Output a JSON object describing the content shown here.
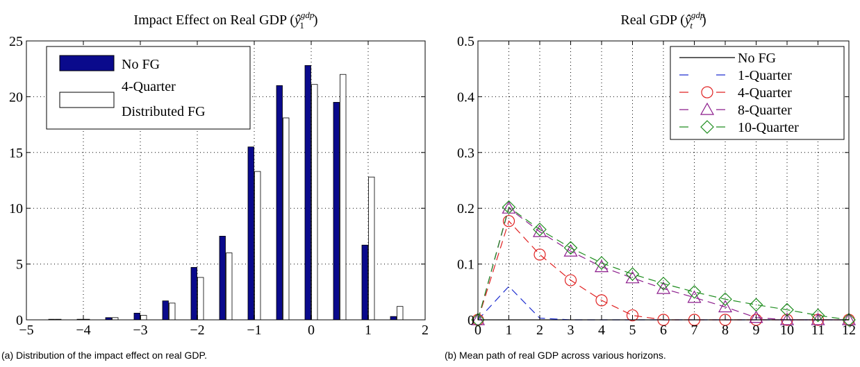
{
  "chart_data": [
    {
      "type": "bar",
      "title": "Impact Effect on Real GDP (ŷ₁ᵍᵈᵖ)",
      "title_main": "Impact Effect on Real GDP (",
      "title_sym": "ŷ",
      "title_sub": "1",
      "title_sup": "gdp",
      "title_close": ")",
      "caption": "(a) Distribution of the impact effect on real GDP.",
      "xlim": [
        -5,
        2
      ],
      "ylim": [
        0,
        25
      ],
      "xticks": [
        "−5",
        "−4",
        "−3",
        "−2",
        "−1",
        "0",
        "1",
        "2"
      ],
      "yticks": [
        "0",
        "5",
        "10",
        "15",
        "20",
        "25"
      ],
      "grid": true,
      "legend": "top-left",
      "bin_centers": [
        -4.5,
        -4.0,
        -3.5,
        -3.0,
        -2.5,
        -2.0,
        -1.5,
        -1.0,
        -0.5,
        0.0,
        0.5,
        1.0,
        1.5
      ],
      "series": [
        {
          "name": "No FG",
          "color": "#0a0a8c",
          "values": [
            0.05,
            0.05,
            0.2,
            0.6,
            1.7,
            4.7,
            7.5,
            15.5,
            21.0,
            22.8,
            19.5,
            6.7,
            0.3
          ]
        },
        {
          "name_line1": "4-Quarter",
          "name_line2": "Distributed FG",
          "color": "#ffffff",
          "values": [
            0.05,
            0.05,
            0.2,
            0.4,
            1.5,
            3.8,
            6.0,
            13.3,
            18.1,
            21.1,
            22.0,
            12.8,
            1.2
          ]
        }
      ]
    },
    {
      "type": "line",
      "title": "Real GDP (ŷₜᵍᵈᵖ)",
      "title_main": "Real GDP (",
      "title_sym": "ŷ",
      "title_sub": "t",
      "title_sup": "gdp",
      "title_close": ")",
      "caption": "(b) Mean path of real GDP across various horizons.",
      "xlim": [
        0,
        12
      ],
      "ylim": [
        0,
        0.5
      ],
      "xticks": [
        "0",
        "1",
        "2",
        "3",
        "4",
        "5",
        "6",
        "7",
        "8",
        "9",
        "10",
        "11",
        "12"
      ],
      "yticks": [
        "0",
        "0.1",
        "0.2",
        "0.3",
        "0.4",
        "0.5"
      ],
      "grid": true,
      "legend": "top-right",
      "x": [
        0,
        1,
        2,
        3,
        4,
        5,
        6,
        7,
        8,
        9,
        10,
        11,
        12
      ],
      "series": [
        {
          "name": "No FG",
          "color": "#000000",
          "dash": "solid",
          "marker": "none",
          "values": [
            0,
            0,
            0,
            0,
            0,
            0,
            0,
            0,
            0,
            0,
            0,
            0,
            0
          ]
        },
        {
          "name": "1-Quarter",
          "color": "#1f2fd0",
          "dash": "dashed",
          "marker": "none",
          "values": [
            0,
            0.06,
            0.003,
            0,
            0,
            0,
            0,
            0,
            0,
            0,
            0,
            0,
            0
          ]
        },
        {
          "name": "4-Quarter",
          "color": "#e02020",
          "dash": "dashed",
          "marker": "circle",
          "values": [
            0,
            0.177,
            0.117,
            0.071,
            0.035,
            0.008,
            0,
            0,
            0,
            0,
            0,
            0,
            0
          ]
        },
        {
          "name": "8-Quarter",
          "color": "#8b1a8b",
          "dash": "dashed",
          "marker": "triangle",
          "values": [
            0,
            0.2,
            0.158,
            0.123,
            0.095,
            0.075,
            0.056,
            0.04,
            0.023,
            0.004,
            0,
            0,
            0
          ]
        },
        {
          "name": "10-Quarter",
          "color": "#1d8c1d",
          "dash": "dashed",
          "marker": "diamond",
          "values": [
            0,
            0.202,
            0.162,
            0.129,
            0.102,
            0.082,
            0.065,
            0.05,
            0.037,
            0.027,
            0.018,
            0.008,
            0
          ]
        }
      ]
    }
  ]
}
